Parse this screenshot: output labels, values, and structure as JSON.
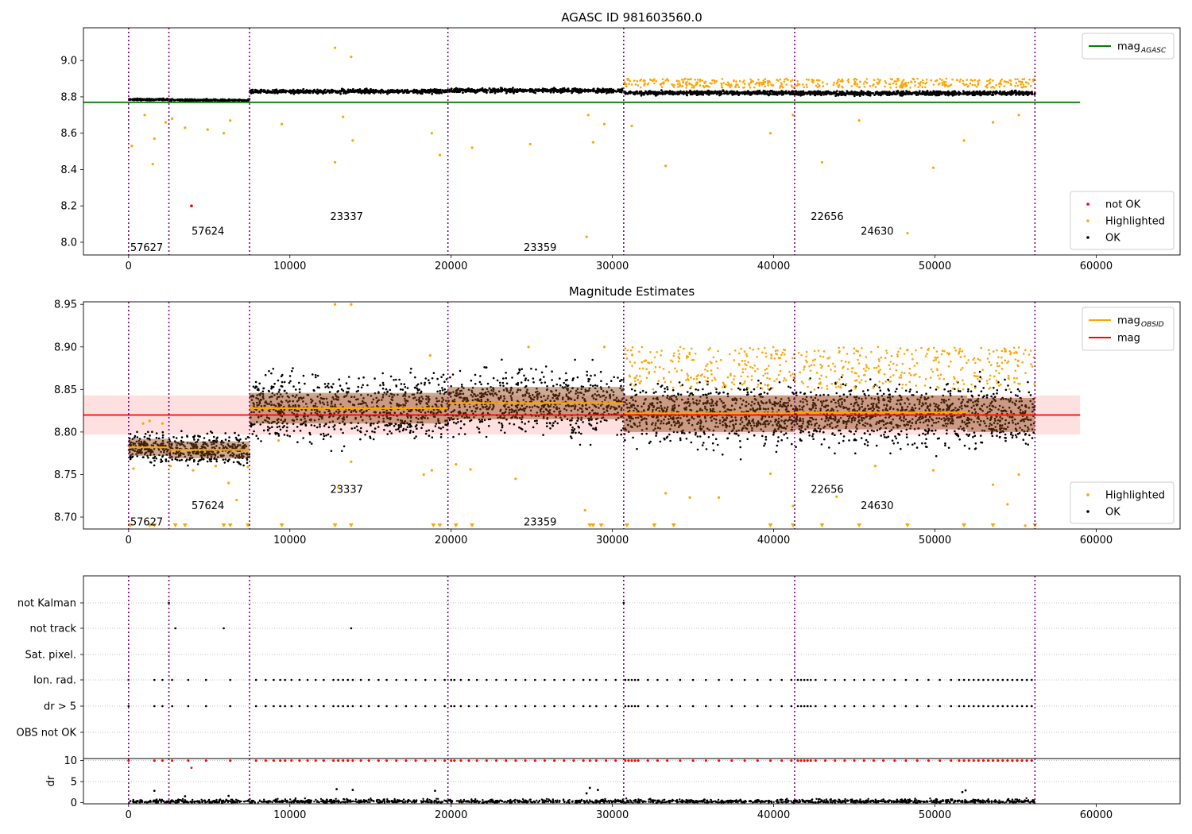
{
  "obs_boundaries": [
    0,
    2500,
    7500,
    19800,
    30700,
    41300,
    56200
  ],
  "chart_data": [
    {
      "type": "scatter",
      "title": "AGASC ID 981603560.0",
      "xlabel": "",
      "ylabel": "",
      "xlim": [
        -2800,
        65200
      ],
      "ylim": [
        7.93,
        9.18
      ],
      "xticks": [
        0,
        10000,
        20000,
        30000,
        40000,
        50000,
        60000
      ],
      "xtick_labels": [
        "0",
        "10000",
        "20000",
        "30000",
        "40000",
        "50000",
        "60000"
      ],
      "yticks": [
        8.0,
        8.2,
        8.4,
        8.6,
        8.8,
        9.0
      ],
      "ytick_labels": [
        "8.0",
        "8.2",
        "8.4",
        "8.6",
        "8.8",
        "9.0"
      ],
      "line_legend": [
        {
          "name": "mag$_{AGASC}$",
          "label_main": "mag",
          "label_sub": "AGASC",
          "color": "#008000"
        }
      ],
      "points_legend": [
        {
          "name": "not OK",
          "color": "#ff0000"
        },
        {
          "name": "Highlighted",
          "color": "#ffa500"
        },
        {
          "name": "OK",
          "color": "#000000"
        }
      ],
      "agasc_mag": {
        "value": 8.77,
        "x_range": [
          -2800,
          59000
        ],
        "color": "#008000"
      },
      "ok_segments": [
        {
          "x": [
            0,
            2500
          ],
          "center": 8.785,
          "spread": 0.02
        },
        {
          "x": [
            2500,
            7500
          ],
          "center": 8.782,
          "spread": 0.02
        },
        {
          "x": [
            7500,
            19800
          ],
          "center": 8.83,
          "spread": 0.04
        },
        {
          "x": [
            19800,
            30700
          ],
          "center": 8.835,
          "spread": 0.04
        },
        {
          "x": [
            30700,
            41300
          ],
          "center": 8.822,
          "spread": 0.04
        },
        {
          "x": [
            41300,
            56200
          ],
          "center": 8.82,
          "spread": 0.04
        }
      ],
      "highlighted_band": {
        "x": [
          30700,
          56200
        ],
        "y": [
          8.85,
          8.9
        ]
      },
      "highlighted_points": [
        {
          "x": 200,
          "y": 8.53
        },
        {
          "x": 1500,
          "y": 8.43
        },
        {
          "x": 1600,
          "y": 8.57
        },
        {
          "x": 1000,
          "y": 8.7
        },
        {
          "x": 2300,
          "y": 8.66
        },
        {
          "x": 2700,
          "y": 8.68
        },
        {
          "x": 3500,
          "y": 8.63
        },
        {
          "x": 4900,
          "y": 8.62
        },
        {
          "x": 5900,
          "y": 8.6
        },
        {
          "x": 6300,
          "y": 8.67
        },
        {
          "x": 9500,
          "y": 8.65
        },
        {
          "x": 12800,
          "y": 9.07
        },
        {
          "x": 13800,
          "y": 9.02
        },
        {
          "x": 12800,
          "y": 8.44
        },
        {
          "x": 13300,
          "y": 8.69
        },
        {
          "x": 13900,
          "y": 8.56
        },
        {
          "x": 18800,
          "y": 8.6
        },
        {
          "x": 19300,
          "y": 8.48
        },
        {
          "x": 21300,
          "y": 8.52
        },
        {
          "x": 24900,
          "y": 8.54
        },
        {
          "x": 28500,
          "y": 8.7
        },
        {
          "x": 28800,
          "y": 8.55
        },
        {
          "x": 29500,
          "y": 8.65
        },
        {
          "x": 28400,
          "y": 8.03
        },
        {
          "x": 31200,
          "y": 8.64
        },
        {
          "x": 33300,
          "y": 8.42
        },
        {
          "x": 39800,
          "y": 8.6
        },
        {
          "x": 41200,
          "y": 8.7
        },
        {
          "x": 43000,
          "y": 8.44
        },
        {
          "x": 45300,
          "y": 8.67
        },
        {
          "x": 48300,
          "y": 8.05
        },
        {
          "x": 49900,
          "y": 8.41
        },
        {
          "x": 51800,
          "y": 8.56
        },
        {
          "x": 53600,
          "y": 8.66
        },
        {
          "x": 55200,
          "y": 8.7
        }
      ],
      "notok_points": [
        {
          "x": 3900,
          "y": 8.2
        }
      ],
      "obs_labels": [
        {
          "text": "57627",
          "x": 100,
          "y": 7.97
        },
        {
          "text": "57624",
          "x": 3900,
          "y": 8.06
        },
        {
          "text": "23337",
          "x": 12500,
          "y": 8.14
        },
        {
          "text": "23359",
          "x": 24500,
          "y": 7.97
        },
        {
          "text": "22656",
          "x": 42300,
          "y": 8.14
        },
        {
          "text": "24630",
          "x": 45400,
          "y": 8.06
        }
      ]
    },
    {
      "type": "scatter",
      "title": "Magnitude Estimates",
      "xlabel": "",
      "ylabel": "",
      "xlim": [
        -2800,
        65200
      ],
      "ylim": [
        8.686,
        8.953
      ],
      "xticks": [
        0,
        10000,
        20000,
        30000,
        40000,
        50000,
        60000
      ],
      "xtick_labels": [
        "0",
        "10000",
        "20000",
        "30000",
        "40000",
        "50000",
        "60000"
      ],
      "yticks": [
        8.7,
        8.75,
        8.8,
        8.85,
        8.9,
        8.95
      ],
      "ytick_labels": [
        "8.70",
        "8.75",
        "8.80",
        "8.85",
        "8.90",
        "8.95"
      ],
      "line_legend": [
        {
          "name": "mag$_{OBSID}$",
          "label_main": "mag",
          "label_sub": "OBSID",
          "color": "#ffa500"
        },
        {
          "name": "mag",
          "label_main": "mag",
          "label_sub": "",
          "color": "#ff0000"
        }
      ],
      "points_legend": [
        {
          "name": "Highlighted",
          "color": "#ffa500"
        },
        {
          "name": "OK",
          "color": "#000000"
        }
      ],
      "mag_line": {
        "value": 8.82,
        "x_range": [
          -2800,
          59000
        ],
        "band": [
          8.797,
          8.843
        ],
        "color": "#ff0000"
      },
      "obsid_mags": [
        {
          "x": [
            0,
            2500
          ],
          "value": 8.782,
          "low": 8.772,
          "high": 8.792
        },
        {
          "x": [
            2500,
            7500
          ],
          "value": 8.779,
          "low": 8.769,
          "high": 8.789
        },
        {
          "x": [
            7500,
            19800
          ],
          "value": 8.828,
          "low": 8.81,
          "high": 8.846
        },
        {
          "x": [
            19800,
            30700
          ],
          "value": 8.834,
          "low": 8.815,
          "high": 8.853
        },
        {
          "x": [
            30700,
            41300
          ],
          "value": 8.822,
          "low": 8.8,
          "high": 8.843
        },
        {
          "x": [
            41300,
            52000
          ],
          "value": 8.823,
          "low": 8.803,
          "high": 8.843
        },
        {
          "x": [
            52000,
            56200
          ],
          "value": 8.82,
          "low": 8.8,
          "high": 8.84
        }
      ],
      "ok_segments": [
        {
          "x": [
            0,
            2500
          ],
          "center": 8.782,
          "spread": 0.028
        },
        {
          "x": [
            2500,
            7500
          ],
          "center": 8.779,
          "spread": 0.028
        },
        {
          "x": [
            7500,
            19800
          ],
          "center": 8.828,
          "spread": 0.06
        },
        {
          "x": [
            19800,
            30700
          ],
          "center": 8.834,
          "spread": 0.06
        },
        {
          "x": [
            30700,
            41300
          ],
          "center": 8.822,
          "spread": 0.058
        },
        {
          "x": [
            41300,
            56200
          ],
          "center": 8.82,
          "spread": 0.058
        }
      ],
      "highlighted_band": {
        "x": [
          30700,
          56200
        ],
        "y": [
          8.85,
          8.9
        ]
      },
      "highlighted_points": [
        {
          "x": 300,
          "y": 8.757
        },
        {
          "x": 900,
          "y": 8.81
        },
        {
          "x": 1300,
          "y": 8.813
        },
        {
          "x": 2100,
          "y": 8.81
        },
        {
          "x": 2600,
          "y": 8.76
        },
        {
          "x": 4000,
          "y": 8.755
        },
        {
          "x": 5400,
          "y": 8.76
        },
        {
          "x": 6200,
          "y": 8.74
        },
        {
          "x": 6700,
          "y": 8.72
        },
        {
          "x": 7400,
          "y": 8.759
        },
        {
          "x": 9300,
          "y": 8.79
        },
        {
          "x": 12800,
          "y": 8.95
        },
        {
          "x": 13800,
          "y": 8.95
        },
        {
          "x": 13000,
          "y": 8.735
        },
        {
          "x": 13800,
          "y": 8.765
        },
        {
          "x": 18700,
          "y": 8.89
        },
        {
          "x": 18300,
          "y": 8.75
        },
        {
          "x": 18800,
          "y": 8.755
        },
        {
          "x": 20300,
          "y": 8.762
        },
        {
          "x": 21200,
          "y": 8.756
        },
        {
          "x": 24000,
          "y": 8.745
        },
        {
          "x": 24800,
          "y": 8.9
        },
        {
          "x": 28300,
          "y": 8.708
        },
        {
          "x": 29500,
          "y": 8.9
        },
        {
          "x": 33300,
          "y": 8.728
        },
        {
          "x": 34800,
          "y": 8.723
        },
        {
          "x": 36600,
          "y": 8.723
        },
        {
          "x": 39800,
          "y": 8.751
        },
        {
          "x": 41200,
          "y": 8.713
        },
        {
          "x": 43900,
          "y": 8.724
        },
        {
          "x": 46300,
          "y": 8.76
        },
        {
          "x": 49900,
          "y": 8.755
        },
        {
          "x": 53600,
          "y": 8.738
        },
        {
          "x": 54500,
          "y": 8.715
        },
        {
          "x": 55200,
          "y": 8.75
        },
        {
          "x": 55600,
          "y": 8.69
        }
      ],
      "clipped_markers_x": [
        100,
        1300,
        1600,
        2900,
        3500,
        5900,
        6300,
        7400,
        9500,
        12800,
        13800,
        18900,
        19300,
        20300,
        21300,
        28600,
        28800,
        29300,
        30900,
        32600,
        33800,
        39800,
        41200,
        43000,
        45300,
        48300,
        51800,
        53600,
        56200
      ],
      "obs_labels": [
        {
          "text": "57627",
          "x": 100,
          "y": 8.694
        },
        {
          "text": "57624",
          "x": 3900,
          "y": 8.713
        },
        {
          "text": "23337",
          "x": 12500,
          "y": 8.732
        },
        {
          "text": "23359",
          "x": 24500,
          "y": 8.694
        },
        {
          "text": "22656",
          "x": 42300,
          "y": 8.732
        },
        {
          "text": "24630",
          "x": 45400,
          "y": 8.713
        }
      ]
    },
    {
      "type": "scatter",
      "title": "",
      "xlabel": "",
      "ylabel": "",
      "categories": [
        "not Kalman",
        "not track",
        "Sat. pixel.",
        "Ion. rad.",
        "dr > 5",
        "OBS not OK"
      ],
      "xlim": [
        -2800,
        65200
      ],
      "flag_points": {
        "not Kalman": [
          2500,
          30700
        ],
        "not track": [
          2900,
          5900,
          13800
        ],
        "Sat. pixel.": [],
        "Ion. rad.": [
          0,
          1600,
          2100,
          2700,
          3700,
          4800,
          6300,
          7900,
          8500,
          9000,
          9400,
          9700,
          10100,
          10600,
          11100,
          11600,
          12100,
          12700,
          13000,
          13300,
          13600,
          13900,
          14400,
          14900,
          15500,
          16000,
          16600,
          17200,
          17800,
          18400,
          19000,
          19600,
          20000,
          20200,
          20600,
          21100,
          21600,
          22200,
          22800,
          23400,
          24000,
          24600,
          25200,
          25800,
          26400,
          27000,
          27600,
          28200,
          28600,
          29000,
          29600,
          30200,
          30800,
          31000,
          31200,
          31400,
          31600,
          32200,
          32800,
          33400,
          34200,
          35000,
          35800,
          36600,
          37400,
          38200,
          39000,
          39800,
          40500,
          41100,
          41500,
          41700,
          41900,
          42100,
          42300,
          42600,
          43200,
          43800,
          44400,
          45000,
          45600,
          46200,
          46800,
          47500,
          48200,
          48900,
          49600,
          50300,
          51000,
          51500,
          51800,
          52100,
          52400,
          52700,
          53000,
          53300,
          53600,
          53900,
          54200,
          54500,
          54800,
          55100,
          55400,
          55700,
          56000
        ],
        "dr > 5": [
          0,
          1600,
          2100,
          2700,
          3700,
          4800,
          6300,
          7900,
          8500,
          9000,
          9400,
          9700,
          10100,
          10600,
          11100,
          11600,
          12100,
          12700,
          13000,
          13300,
          13600,
          13900,
          14400,
          14900,
          15500,
          16000,
          16600,
          17200,
          17800,
          18400,
          19000,
          19600,
          20000,
          20200,
          20600,
          21100,
          21600,
          22200,
          22800,
          23400,
          24000,
          24600,
          25200,
          25800,
          26400,
          27000,
          27600,
          28200,
          28600,
          29000,
          29600,
          30200,
          30800,
          31000,
          31200,
          31400,
          31600,
          32200,
          32800,
          33400,
          34200,
          35000,
          35800,
          36600,
          37400,
          38200,
          39000,
          39800,
          40500,
          41100,
          41500,
          41700,
          41900,
          42100,
          42300,
          42600,
          43200,
          43800,
          44400,
          45000,
          45600,
          46200,
          46800,
          47500,
          48200,
          48900,
          49600,
          50300,
          51000,
          51500,
          51800,
          52100,
          52400,
          52700,
          53000,
          53300,
          53600,
          53900,
          54200,
          54500,
          54800,
          55100,
          55400,
          55700,
          56000
        ],
        "OBS not OK": []
      }
    },
    {
      "type": "scatter",
      "title": "",
      "xlabel": "",
      "ylabel": "dr",
      "xlim": [
        -2800,
        65200
      ],
      "ylim": [
        -0.3,
        10.5
      ],
      "yticks": [
        0,
        5,
        10
      ],
      "ytick_labels": [
        "0",
        "5",
        "10"
      ],
      "xticks": [
        0,
        10000,
        20000,
        30000,
        40000,
        50000,
        60000
      ],
      "xtick_labels": [
        "0",
        "10000",
        "20000",
        "30000",
        "40000",
        "50000",
        "60000"
      ],
      "dr_band": {
        "x": [
          0,
          56200
        ],
        "y": [
          0,
          1.2
        ]
      },
      "outlier_points": [
        {
          "x": 1600,
          "y": 2.8
        },
        {
          "x": 3900,
          "y": 8.3
        },
        {
          "x": 3500,
          "y": 1.5
        },
        {
          "x": 12900,
          "y": 3.2
        },
        {
          "x": 13900,
          "y": 3.0
        },
        {
          "x": 19000,
          "y": 2.8
        },
        {
          "x": 28600,
          "y": 3.5
        },
        {
          "x": 29100,
          "y": 3.0
        },
        {
          "x": 28400,
          "y": 2.2
        },
        {
          "x": 51900,
          "y": 2.9
        },
        {
          "x": 51700,
          "y": 2.5
        },
        {
          "x": 6200,
          "y": 1.6
        }
      ],
      "capped_value": 10,
      "capped_x": [
        0,
        1600,
        2100,
        2700,
        3700,
        4800,
        6300,
        7900,
        8500,
        9000,
        9400,
        9700,
        10100,
        10600,
        11100,
        11600,
        12100,
        12700,
        13000,
        13300,
        13600,
        13900,
        14400,
        14900,
        15500,
        16000,
        16600,
        17200,
        17800,
        18400,
        19000,
        19600,
        20000,
        20200,
        20600,
        21100,
        21600,
        22200,
        22800,
        23400,
        24000,
        24600,
        25200,
        25800,
        26400,
        27000,
        27600,
        28200,
        28600,
        29000,
        29600,
        30200,
        30800,
        31000,
        31200,
        31400,
        31600,
        32200,
        32800,
        33400,
        34200,
        35000,
        35800,
        36600,
        37400,
        38200,
        39000,
        39800,
        40500,
        41100,
        41500,
        41700,
        41900,
        42100,
        42300,
        42600,
        43200,
        43800,
        44400,
        45000,
        45600,
        46200,
        46800,
        47500,
        48200,
        48900,
        49600,
        50300,
        51000,
        51500,
        51800,
        52100,
        52400,
        52700,
        53000,
        53300,
        53600,
        53900,
        54200,
        54500,
        54800,
        55100,
        55400,
        55700,
        56000
      ]
    }
  ]
}
